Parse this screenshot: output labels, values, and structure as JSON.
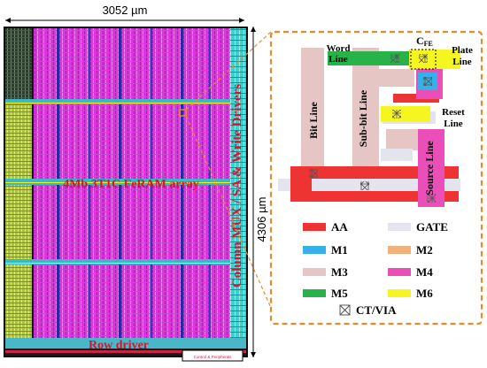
{
  "dimensions": {
    "width_label": "3052 µm",
    "height_label": "4306 µm"
  },
  "chip": {
    "array_label": "4Mb 3T1C FeRAM array",
    "column_label": "Column MUX / SA & Write Drivers",
    "row_label": "Row driver",
    "small_label": "Control & Peripherals"
  },
  "cell": {
    "word_line": [
      "Word",
      "Line"
    ],
    "cfe_main": "C",
    "cfe_sub": "FE",
    "plate_line": [
      "Plate",
      "Line"
    ],
    "bit_line": "Bit Line",
    "sub_bit_line": "Sub-bit Line",
    "reset_line": [
      "Reset",
      "Line"
    ],
    "source_line": "Source Line"
  },
  "legend": {
    "items": [
      {
        "label": "AA",
        "color": "#ee3333"
      },
      {
        "label": "GATE",
        "color": "#e4e4ee"
      },
      {
        "label": "M1",
        "color": "#35b0e8"
      },
      {
        "label": "M2",
        "color": "#f2b07a"
      },
      {
        "label": "M3",
        "color": "#e6c5c5"
      },
      {
        "label": "M4",
        "color": "#ea4fb8"
      },
      {
        "label": "M5",
        "color": "#28b24a"
      },
      {
        "label": "M6",
        "color": "#f5f520"
      }
    ],
    "via_label": "CT/VIA"
  },
  "colors": {
    "array_magenta": "#e030e0",
    "column_cyan": "#3ecfcf",
    "callout_orange": "#e88a2a",
    "row_driver_red": "#cc2244"
  }
}
